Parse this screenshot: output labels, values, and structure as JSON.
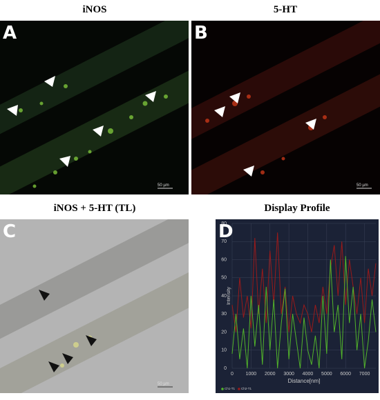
{
  "panels": [
    {
      "letter": "A",
      "title": "iNOS",
      "scale_bar": "50 µm"
    },
    {
      "letter": "B",
      "title": "5-HT",
      "scale_bar": "50 µm"
    },
    {
      "letter": "C",
      "title": "iNOS + 5-HT (TL)",
      "scale_bar": "50 µm"
    },
    {
      "letter": "D",
      "title": "Display Profile"
    }
  ],
  "chart_data": {
    "type": "line",
    "x_label": "Distance[nm]",
    "y_label": "Intensity",
    "x": [
      0,
      200,
      400,
      600,
      800,
      1000,
      1200,
      1400,
      1600,
      1800,
      2000,
      2200,
      2400,
      2600,
      2800,
      3000,
      3200,
      3400,
      3600,
      3800,
      4000,
      4200,
      4400,
      4600,
      4800,
      5000,
      5200,
      5400,
      5600,
      5800,
      6000,
      6200,
      6400,
      6600,
      6800,
      7000,
      7200,
      7400,
      7600
    ],
    "series": [
      {
        "name": "Ch2-T1",
        "color": "#9a1a1a",
        "values": [
          35,
          20,
          50,
          28,
          40,
          22,
          72,
          30,
          55,
          25,
          65,
          35,
          75,
          30,
          45,
          20,
          40,
          30,
          25,
          35,
          30,
          20,
          35,
          25,
          45,
          30,
          55,
          68,
          40,
          70,
          35,
          60,
          45,
          30,
          50,
          25,
          55,
          40,
          58
        ]
      },
      {
        "name": "Ch1-T1",
        "color": "#52b52a",
        "values": [
          8,
          30,
          5,
          22,
          0,
          40,
          12,
          35,
          2,
          45,
          10,
          38,
          0,
          25,
          44,
          5,
          30,
          15,
          0,
          28,
          10,
          2,
          18,
          0,
          40,
          8,
          60,
          20,
          35,
          5,
          62,
          25,
          45,
          10,
          30,
          0,
          15,
          38,
          20
        ]
      }
    ],
    "xlim": [
      0,
      7600
    ],
    "xticks": [
      0,
      1000,
      2000,
      3000,
      4000,
      5000,
      6000,
      7000
    ],
    "ylim": [
      0,
      80
    ],
    "yticks": [
      0,
      10,
      20,
      30,
      40,
      50,
      60,
      70,
      80
    ],
    "grid": true
  }
}
